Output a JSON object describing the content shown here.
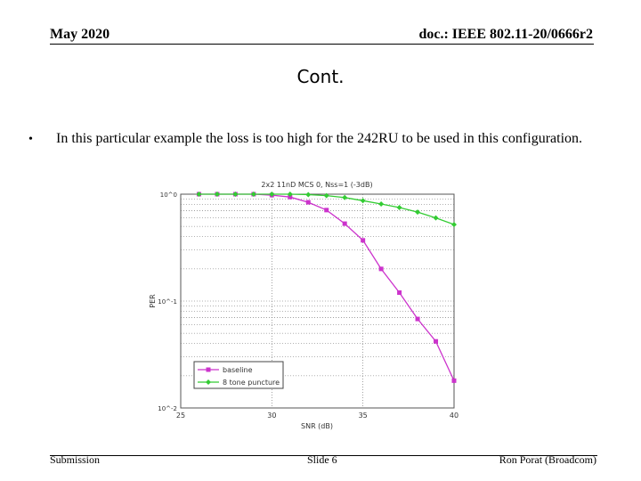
{
  "header": {
    "date": "May 2020",
    "doc": "doc.: IEEE 802.11-20/0666r2"
  },
  "slide": {
    "title": "Cont.",
    "bullet": "In this particular example the loss is too high for the 242RU to be used in this configuration."
  },
  "footer": {
    "left": "Submission",
    "center": "Slide 6",
    "right": "Ron Porat (Broadcom)"
  },
  "chart_data": {
    "type": "line",
    "title": "2x2 11nD MCS 0, Nss=1 (-3dB)",
    "xlabel": "SNR (dB)",
    "ylabel": "PER",
    "y_scale": "log",
    "xlim": [
      25,
      40
    ],
    "ylim": [
      0.01,
      1
    ],
    "x_ticks": [
      "25",
      "30",
      "35",
      "40"
    ],
    "y_ticks": [
      "10^0",
      "10^-1",
      "10^-2"
    ],
    "grid": true,
    "legend_position": "bottom-left",
    "series": [
      {
        "name": "baseline",
        "color": "#cc33cc",
        "marker": "square",
        "x": [
          26,
          27,
          28,
          29,
          30,
          31,
          32,
          33,
          34,
          35,
          36,
          37,
          38,
          39,
          40
        ],
        "y": [
          1.0,
          1.0,
          1.0,
          1.0,
          0.98,
          0.94,
          0.84,
          0.71,
          0.53,
          0.37,
          0.2,
          0.12,
          0.068,
          0.042,
          0.018
        ]
      },
      {
        "name": "8 tone puncture",
        "color": "#33cc33",
        "marker": "diamond",
        "x": [
          26,
          27,
          28,
          29,
          30,
          31,
          32,
          33,
          34,
          35,
          36,
          37,
          38,
          39,
          40
        ],
        "y": [
          1.0,
          1.0,
          1.0,
          1.0,
          1.0,
          1.0,
          0.99,
          0.97,
          0.93,
          0.87,
          0.81,
          0.75,
          0.68,
          0.6,
          0.52
        ]
      }
    ]
  }
}
